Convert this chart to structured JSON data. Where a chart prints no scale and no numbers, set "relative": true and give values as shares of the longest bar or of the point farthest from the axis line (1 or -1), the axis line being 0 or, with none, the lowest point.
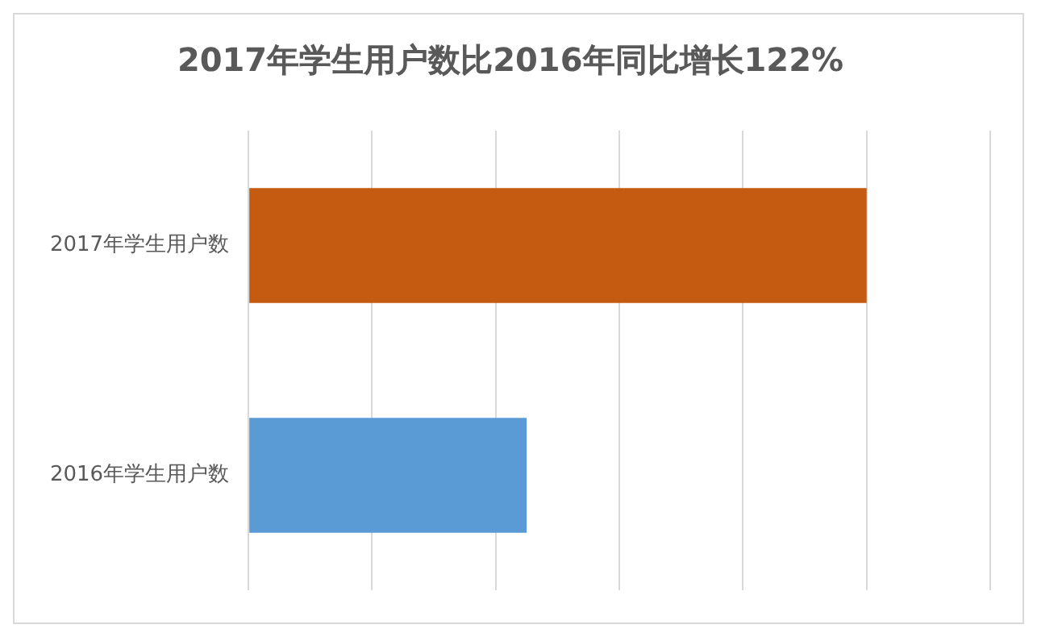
{
  "chart_data": {
    "type": "bar",
    "orientation": "horizontal",
    "relative": true,
    "title": "2017年学生用户数比2016年同比增长122%",
    "categories": [
      "2017年学生用户数",
      "2016年学生用户数"
    ],
    "values": [
      1,
      0.45
    ],
    "colors": [
      "#c55a11",
      "#5b9bd5"
    ],
    "grid": "x",
    "legend": false
  }
}
